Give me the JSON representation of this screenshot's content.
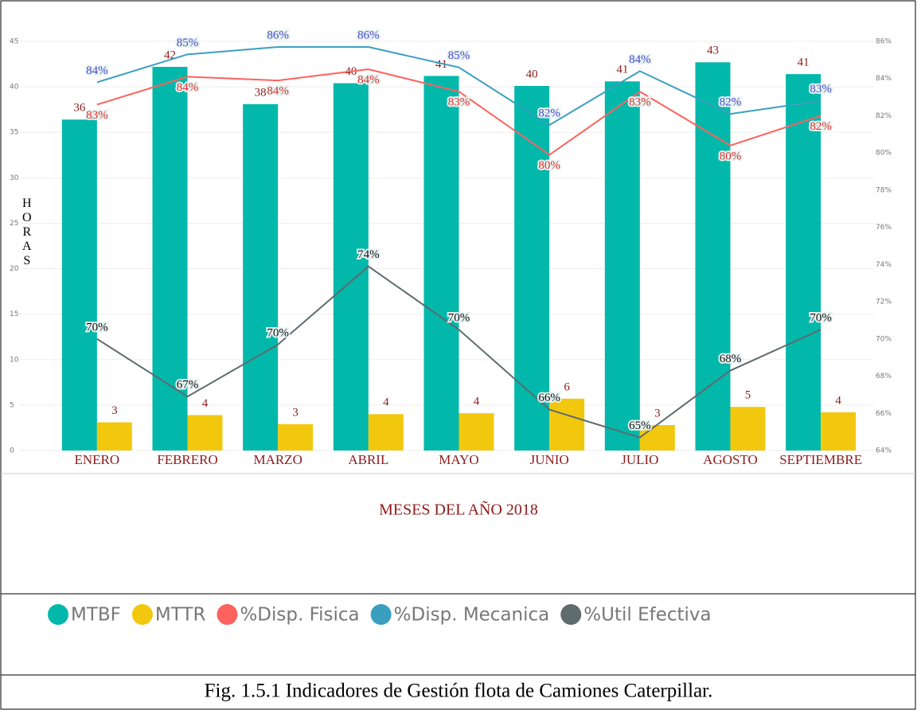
{
  "chart_data": {
    "type": "bar",
    "categories": [
      "ENERO",
      "FEBRERO",
      "MARZO",
      "ABRIL",
      "MAYO",
      "JUNIO",
      "JULIO",
      "AGOSTO",
      "SEPTIEMBRE"
    ],
    "series": [
      {
        "name": "MTBF",
        "type": "bar",
        "color": "#01b8aa",
        "label_color": "#8b1a1a",
        "values": [
          36.4,
          42.2,
          38.1,
          40.4,
          41.2,
          40.1,
          40.6,
          42.7,
          41.4
        ],
        "value_labels": [
          "36",
          "42",
          "38",
          "40",
          "41",
          "40",
          "41",
          "43",
          "41"
        ]
      },
      {
        "name": "MTTR",
        "type": "bar",
        "color": "#f2c80f",
        "label_color": "#8b1a1a",
        "values": [
          3.1,
          3.9,
          2.9,
          4.0,
          4.1,
          5.7,
          2.8,
          4.8,
          4.2
        ],
        "value_labels": [
          "3",
          "4",
          "3",
          "4",
          "4",
          "6",
          "3",
          "5",
          "4"
        ]
      },
      {
        "name": "%Disp. Fisica",
        "type": "line",
        "axis": "y2",
        "color": "#fd625e",
        "label_color": "#e0302c",
        "values": [
          82.6,
          84.1,
          83.9,
          84.5,
          83.3,
          79.9,
          83.3,
          80.4,
          82.0
        ],
        "value_labels": [
          "83%",
          "84%",
          "84%",
          "84%",
          "83%",
          "80%",
          "83%",
          "80%",
          "82%"
        ]
      },
      {
        "name": "%Disp. Mecanica",
        "type": "line",
        "axis": "y2",
        "color": "#3a9fbf",
        "label_color": "#4a4acf",
        "values": [
          83.8,
          85.3,
          85.7,
          85.7,
          84.6,
          81.5,
          84.4,
          82.1,
          82.8
        ],
        "value_labels": [
          "84%",
          "85%",
          "86%",
          "86%",
          "85%",
          "82%",
          "84%",
          "82%",
          "83%"
        ]
      },
      {
        "name": "%Util Efectiva",
        "type": "line",
        "axis": "y2",
        "color": "#5f6b6d",
        "label_color": "#111",
        "values": [
          70.0,
          66.9,
          69.7,
          73.9,
          70.5,
          66.2,
          64.7,
          68.3,
          70.5
        ],
        "value_labels": [
          "70%",
          "67%",
          "70%",
          "74%",
          "70%",
          "66%",
          "65%",
          "68%",
          "70%"
        ]
      }
    ],
    "y_label": "HORAS",
    "x_label": "MESES DEL AÑO 2018",
    "ylim": [
      0,
      45
    ],
    "yticks": [
      0,
      5,
      10,
      15,
      20,
      25,
      30,
      35,
      40,
      45
    ],
    "y2lim": [
      64,
      86
    ],
    "y2ticks": [
      {
        "value": 64,
        "label": "64%"
      },
      {
        "value": 66,
        "label": "66%"
      },
      {
        "value": 68,
        "label": "68%"
      },
      {
        "value": 70,
        "label": "70%"
      },
      {
        "value": 72,
        "label": "72%"
      },
      {
        "value": 74,
        "label": "74%"
      },
      {
        "value": 76,
        "label": "76%"
      },
      {
        "value": 78,
        "label": "78%"
      },
      {
        "value": 80,
        "label": "80%"
      },
      {
        "value": 82,
        "label": "82%"
      },
      {
        "value": 84,
        "label": "84%"
      },
      {
        "value": 86,
        "label": "86%"
      }
    ],
    "grid": true,
    "legend": "bottom",
    "caption": "Fig. 1.5.1 Indicadores de Gestión flota de Camiones Caterpillar."
  }
}
